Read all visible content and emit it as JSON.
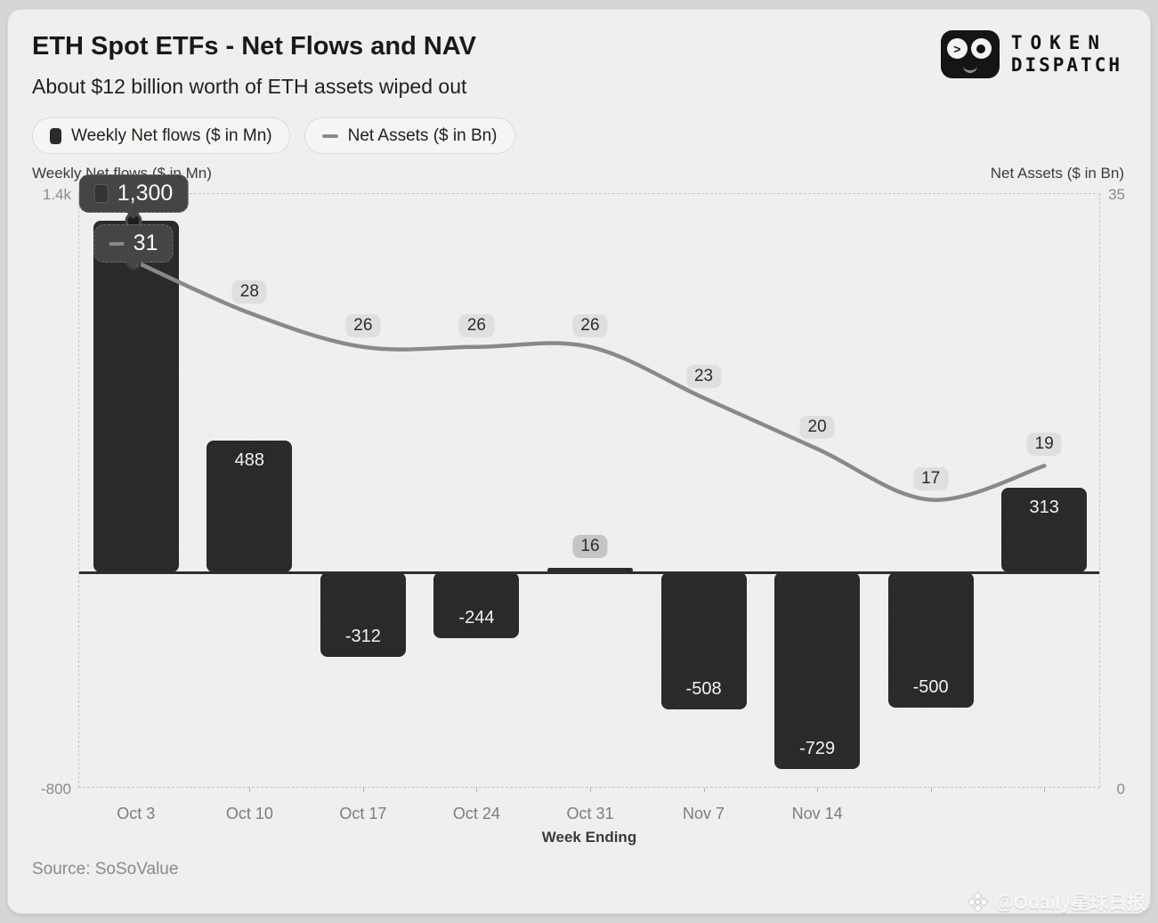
{
  "header": {
    "title": "ETH Spot ETFs - Net Flows and NAV",
    "subtitle": "About $12 billion worth of ETH assets wiped out"
  },
  "logo": {
    "line1": "TOKEN",
    "line2": "DISPATCH"
  },
  "legend": {
    "bar_label": "Weekly Net flows ($ in Mn)",
    "line_label": "Net Assets ($ in Bn)"
  },
  "chart_data": {
    "type": "bar+line",
    "categories": [
      "Oct 3",
      "Oct 10",
      "Oct 17",
      "Oct 24",
      "Oct 31",
      "Nov 7",
      "Nov 14",
      "",
      ""
    ],
    "series": [
      {
        "name": "Weekly Net flows ($ in Mn)",
        "type": "bar",
        "values": [
          1300,
          488,
          -312,
          -244,
          16,
          -508,
          -729,
          -500,
          313
        ],
        "labels": [
          "1,300",
          "488",
          "-312",
          "-244",
          "16",
          "-508",
          "-729",
          "-500",
          "313"
        ]
      },
      {
        "name": "Net Assets ($ in Bn)",
        "type": "line",
        "values": [
          31,
          28,
          26,
          26,
          26,
          23,
          20,
          17,
          19
        ],
        "labels": [
          "31",
          "28",
          "26",
          "26",
          "26",
          "23",
          "20",
          "17",
          "19"
        ]
      }
    ],
    "left_axis": {
      "title": "Weekly Net flows ($ in Mn)",
      "top_label": "1.4k",
      "bottom_label": "-800",
      "max": 1400,
      "min": -800
    },
    "right_axis": {
      "title": "Net Assets ($ in Bn)",
      "top_label": "35",
      "bottom_label": "0",
      "max": 35,
      "min": 0
    },
    "xlabel": "Week Ending",
    "tooltip": {
      "bar_value": "1,300",
      "line_value": "31"
    },
    "colors": {
      "bar": "#2a2a28",
      "line": "#8a8988",
      "badge_bg": "#e0dfdd",
      "badge_dark_bg": "#c6c5c3"
    },
    "legend_position": "top-left",
    "grid": "dashed-frame"
  },
  "footer": {
    "source": "Source: SoSoValue",
    "watermark": "@Odaily星球日报"
  }
}
